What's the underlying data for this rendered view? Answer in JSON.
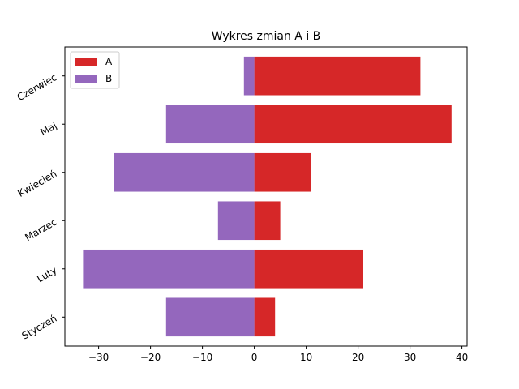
{
  "chart_data": {
    "type": "bar",
    "orientation": "horizontal",
    "title": "Wykres zmian A i B",
    "xlabel": "",
    "ylabel": "",
    "categories": [
      "Styczeń",
      "Luty",
      "Marzec",
      "Kwiecień",
      "Maj",
      "Czerwiec"
    ],
    "series": [
      {
        "name": "A",
        "color": "#d62728",
        "values": [
          4,
          21,
          5,
          11,
          38,
          32
        ]
      },
      {
        "name": "B",
        "color": "#9467bd",
        "values": [
          -17,
          -33,
          -7,
          -27,
          -17,
          -2
        ]
      }
    ],
    "xlim": [
      -36.5,
      41
    ],
    "xticks": [
      -30,
      -20,
      -10,
      0,
      10,
      20,
      30,
      40
    ],
    "xtick_labels": [
      "−30",
      "−20",
      "−10",
      "0",
      "10",
      "20",
      "30",
      "40"
    ],
    "grid": false,
    "legend_position": "upper-left"
  }
}
